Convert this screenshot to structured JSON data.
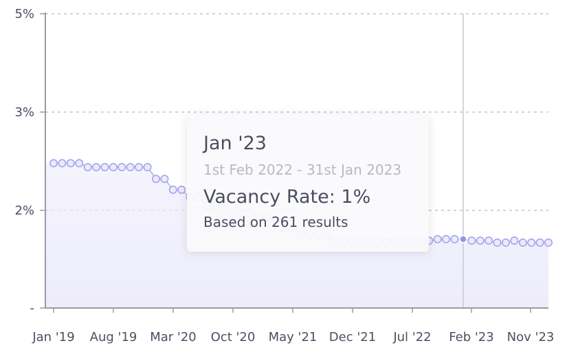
{
  "chart_data": {
    "type": "area",
    "title": "",
    "xlabel": "",
    "ylabel": "",
    "y_ticks": [
      "5%",
      "3%",
      "2%",
      "-"
    ],
    "y_tick_values": [
      5,
      3,
      2,
      0
    ],
    "x_ticks": [
      "Jan '19",
      "Aug '19",
      "Mar '20",
      "Oct '20",
      "May '21",
      "Dec '21",
      "Jul '22",
      "Feb '23",
      "Nov '23"
    ],
    "x_tick_index": [
      0,
      7,
      14,
      21,
      28,
      35,
      42,
      49,
      58
    ],
    "ylim": [
      0,
      3
    ],
    "grid": true,
    "x": [
      "Jan '19",
      "Feb '19",
      "Mar '19",
      "Apr '19",
      "May '19",
      "Jun '19",
      "Jul '19",
      "Aug '19",
      "Sep '19",
      "Oct '19",
      "Nov '19",
      "Dec '19",
      "Jan '20",
      "Feb '20",
      "Mar '20",
      "Apr '20",
      "May '20",
      "Jun '20",
      "Jul '20",
      "Aug '20",
      "Sep '20",
      "Oct '20",
      "Nov '20",
      "Dec '20",
      "Jan '21",
      "Feb '21",
      "Mar '21",
      "Apr '21",
      "May '21",
      "Jun '21",
      "Jul '21",
      "Aug '21",
      "Sep '21",
      "Oct '21",
      "Nov '21",
      "Dec '21",
      "Jan '22",
      "Feb '22",
      "Mar '22",
      "Apr '22",
      "May '22",
      "Jun '22",
      "Jul '22",
      "Aug '22",
      "Sep '22",
      "Oct '22",
      "Nov '22",
      "Dec '22",
      "Jan '23",
      "Feb '23",
      "Mar '23",
      "Apr '23",
      "May '23",
      "Jun '23",
      "Jul '23",
      "Aug '23",
      "Sep '23",
      "Oct '23",
      "Nov '23"
    ],
    "series": [
      {
        "values": [
          2.48,
          2.48,
          2.48,
          2.48,
          2.44,
          2.44,
          2.44,
          2.44,
          2.44,
          2.44,
          2.44,
          2.44,
          2.32,
          2.32,
          2.21,
          2.21,
          2.13,
          2.13,
          2.05,
          2.05,
          2.05,
          1.94,
          1.94,
          1.94,
          1.85,
          1.85,
          1.79,
          1.79,
          1.66,
          1.51,
          1.51,
          1.49,
          1.49,
          1.34,
          1.34,
          1.34,
          1.34,
          1.38,
          1.34,
          1.34,
          1.38,
          1.38,
          1.38,
          1.38,
          1.38,
          1.41,
          1.41,
          1.41,
          1.41,
          1.38,
          1.38,
          1.38,
          1.34,
          1.34,
          1.38,
          1.34,
          1.34,
          1.34,
          1.34
        ]
      }
    ],
    "colors": {
      "line": "#a9abe8",
      "fill": "#ecebfb",
      "marker_stroke": "#a3a5ec",
      "marker_fill": "#eceafb",
      "active": "#9496e4",
      "crosshair": "#c8c8d2",
      "grid": "#d2d3db",
      "axis": "#9a9aa4"
    },
    "active_index": 48
  },
  "tooltip": {
    "title": "Jan '23",
    "range": "1st Feb 2022 - 31st Jan 2023",
    "value": "Vacancy Rate: 1%",
    "note": "Based on 261 results"
  }
}
